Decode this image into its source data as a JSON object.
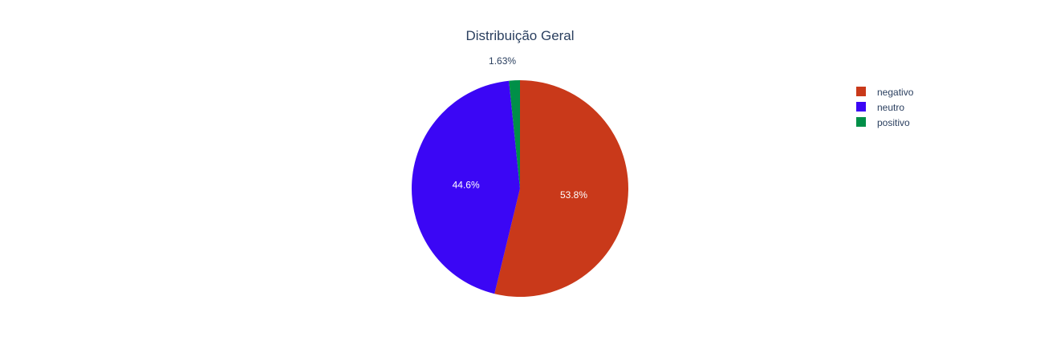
{
  "chart_data": {
    "type": "pie",
    "title": "Distribuição Geral",
    "labels": [
      "negativo",
      "neutro",
      "positivo"
    ],
    "values": [
      53.8,
      44.6,
      1.63
    ],
    "value_labels": [
      "53.8%",
      "44.6%",
      "1.63%"
    ],
    "colors": [
      "#c9391a",
      "#3b06f5",
      "#008f48"
    ],
    "direction": "clockwise",
    "start_angle": "top",
    "legend": {
      "position": "top-right",
      "items": [
        "negativo",
        "neutro",
        "positivo"
      ]
    }
  }
}
